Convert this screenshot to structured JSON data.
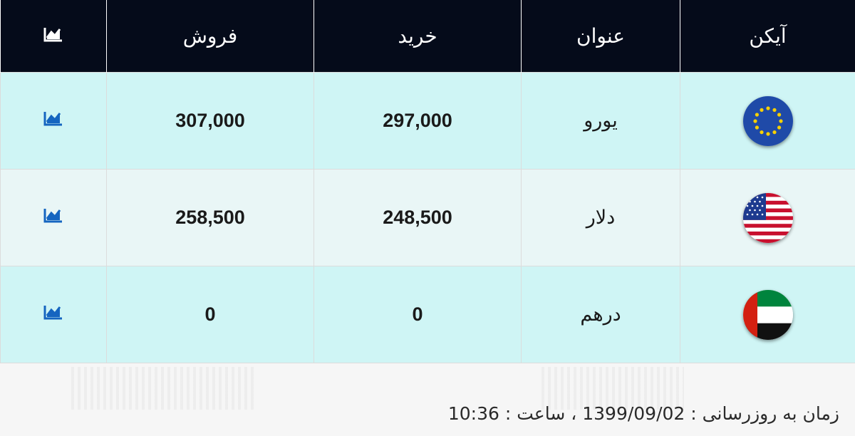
{
  "table": {
    "headers": {
      "icon": "آیکن",
      "title": "عنوان",
      "buy": "خرید",
      "sell": "فروش",
      "chart_icon": "chart-icon"
    },
    "rows": [
      {
        "flag": "eu-flag-icon",
        "name": "یورو",
        "buy": "297,000",
        "sell": "307,000",
        "chart_icon": "chart-icon"
      },
      {
        "flag": "us-flag-icon",
        "name": "دلار",
        "buy": "248,500",
        "sell": "258,500",
        "chart_icon": "chart-icon"
      },
      {
        "flag": "uae-flag-icon",
        "name": "درهم",
        "buy": "0",
        "sell": "0",
        "chart_icon": "chart-icon"
      }
    ]
  },
  "footer": {
    "update_text": "زمان به روزرسانی : 1399/09/02 ، ساعت : 10:36"
  },
  "colors": {
    "header_bg": "#050b1a",
    "row_highlight": "#cff5f5",
    "row_alt": "#e9f6f6",
    "chart_icon": "#1565c0"
  }
}
